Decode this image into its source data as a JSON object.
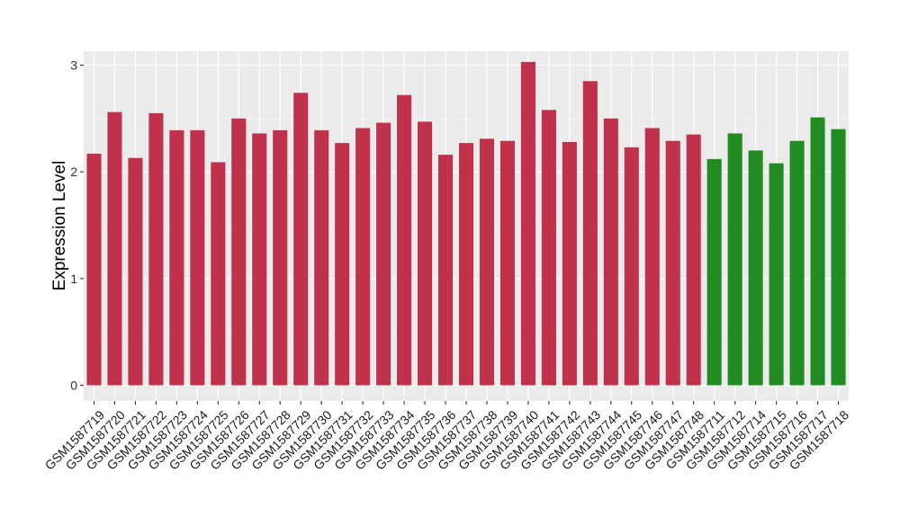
{
  "chart_data": {
    "type": "bar",
    "ylabel": "Expression Level",
    "xlabel": "",
    "ylim": [
      0,
      3.13
    ],
    "yticks": [
      0,
      1,
      2,
      3
    ],
    "grid": true,
    "colors": {
      "group1": "#c0314b",
      "group2": "#228b22",
      "panel": "#ebebeb",
      "gridline": "#ffffff"
    },
    "categories": [
      "GSM1587719",
      "GSM1587720",
      "GSM1587721",
      "GSM1587722",
      "GSM1587723",
      "GSM1587724",
      "GSM1587725",
      "GSM1587726",
      "GSM1587727",
      "GSM1587728",
      "GSM1587729",
      "GSM1587730",
      "GSM1587731",
      "GSM1587732",
      "GSM1587733",
      "GSM1587734",
      "GSM1587735",
      "GSM1587736",
      "GSM1587737",
      "GSM1587738",
      "GSM1587739",
      "GSM1587740",
      "GSM1587741",
      "GSM1587742",
      "GSM1587743",
      "GSM1587744",
      "GSM1587745",
      "GSM1587746",
      "GSM1587747",
      "GSM1587748",
      "GSM1587711",
      "GSM1587712",
      "GSM1587714",
      "GSM1587715",
      "GSM1587716",
      "GSM1587717",
      "GSM1587718"
    ],
    "values": [
      2.17,
      2.56,
      2.13,
      2.55,
      2.39,
      2.39,
      2.09,
      2.5,
      2.36,
      2.39,
      2.74,
      2.39,
      2.27,
      2.41,
      2.46,
      2.72,
      2.47,
      2.16,
      2.27,
      2.31,
      2.29,
      3.03,
      2.58,
      2.28,
      2.85,
      2.5,
      2.23,
      2.41,
      2.29,
      2.35,
      2.12,
      2.36,
      2.2,
      2.08,
      2.29,
      2.51,
      2.4
    ],
    "groups": [
      "group1",
      "group1",
      "group1",
      "group1",
      "group1",
      "group1",
      "group1",
      "group1",
      "group1",
      "group1",
      "group1",
      "group1",
      "group1",
      "group1",
      "group1",
      "group1",
      "group1",
      "group1",
      "group1",
      "group1",
      "group1",
      "group1",
      "group1",
      "group1",
      "group1",
      "group1",
      "group1",
      "group1",
      "group1",
      "group1",
      "group2",
      "group2",
      "group2",
      "group2",
      "group2",
      "group2",
      "group2"
    ]
  }
}
